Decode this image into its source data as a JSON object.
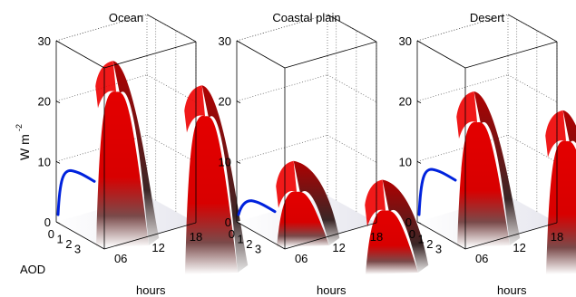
{
  "figure": {
    "ylabel": "W m",
    "ylabel_sup": "-2",
    "aod_label": "AOD",
    "xlabel": "hours"
  },
  "chart_data": [
    {
      "type": "surface",
      "title": "Ocean",
      "zlim": [
        0,
        30
      ],
      "zticks": [
        "0",
        "10",
        "20",
        "30"
      ],
      "aod_ticks": [
        "0",
        "1",
        "2",
        "3"
      ],
      "hour_ticks": [
        "06",
        "12",
        "18"
      ],
      "peak_values": [
        27,
        27.5
      ],
      "curve_peak": 7.3,
      "colors": {
        "surface": "#e00000",
        "curve": "#0022dd"
      }
    },
    {
      "type": "surface",
      "title": "Coastal plain",
      "zlim": [
        0,
        30
      ],
      "zticks": [
        "0",
        "10",
        "20",
        "30"
      ],
      "aod_ticks": [
        "0",
        "1",
        "2",
        "3"
      ],
      "hour_ticks": [
        "06",
        "12",
        "18"
      ],
      "peak_values": [
        9,
        10.5
      ],
      "curve_peak": 2.3,
      "colors": {
        "surface": "#e00000",
        "curve": "#0022dd"
      }
    },
    {
      "type": "surface",
      "title": "Desert",
      "zlim": [
        0,
        30
      ],
      "zticks": [
        "0",
        "10",
        "20",
        "30"
      ],
      "aod_ticks": [
        "0",
        "1",
        "2",
        "3"
      ],
      "hour_ticks": [
        "06",
        "12",
        "18"
      ],
      "peak_values": [
        21.5,
        23
      ],
      "curve_peak": 7.5,
      "colors": {
        "surface": "#e00000",
        "curve": "#0022dd"
      }
    }
  ]
}
